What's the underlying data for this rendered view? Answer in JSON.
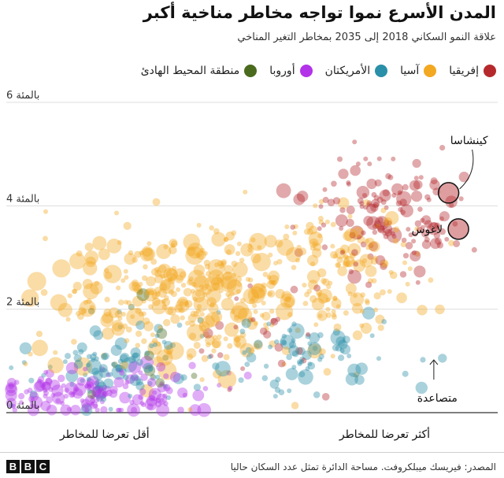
{
  "header": {
    "title": "المدن الأسرع نموا تواجه مخاطر مناخية أكبر",
    "subtitle": "علاقة النمو السكاني 2018 إلى 2035 بمخاطر التغير المناخي"
  },
  "legend": [
    {
      "label": "إفريقيا",
      "color": "#b5292c"
    },
    {
      "label": "آسيا",
      "color": "#f2a820"
    },
    {
      "label": "الأمريكتان",
      "color": "#2a8fa8"
    },
    {
      "label": "أوروبا",
      "color": "#b233e8"
    },
    {
      "label": "منطقة المحيط الهادئ",
      "color": "#4a6b1d"
    }
  ],
  "footer": {
    "source": "المصدر: فيريسك ميبلكروفت. مساحة الدائرة تمثل عدد السكان حاليا",
    "logo": [
      "B",
      "B",
      "C"
    ]
  },
  "chart_data": {
    "type": "scatter",
    "title": "المدن الأسرع نموا تواجه مخاطر مناخية أكبر",
    "subtitle": "علاقة النمو السكاني 2018 إلى 2035 بمخاطر التغير المناخي",
    "ylim": [
      0,
      6
    ],
    "yticks": [
      {
        "value": 0,
        "label": "0 بالمئة"
      },
      {
        "value": 2,
        "label": "2 بالمئة"
      },
      {
        "value": 4,
        "label": "4 بالمئة"
      },
      {
        "value": 6,
        "label": "6 بالمئة"
      }
    ],
    "xlim": [
      0,
      100
    ],
    "x_labels": {
      "low": "أقل تعرضا للمخاطر",
      "high": "أكثر تعرضا للمخاطر"
    },
    "grid": true,
    "legend_position": "top",
    "arrow_label": "متصاعدة",
    "series": [
      {
        "name": "إفريقيا",
        "color": "#b5292c",
        "clusters": [
          {
            "xc": 78,
            "yc": 3.9,
            "sx": 8,
            "sy": 0.55,
            "n": 150,
            "rmin": 3,
            "rmax": 10
          },
          {
            "xc": 55,
            "yc": 1.6,
            "sx": 10,
            "sy": 0.6,
            "n": 25,
            "rmin": 3,
            "rmax": 7
          }
        ]
      },
      {
        "name": "آسيا",
        "color": "#f2a820",
        "clusters": [
          {
            "xc": 38,
            "yc": 2.2,
            "sx": 15,
            "sy": 0.7,
            "n": 360,
            "rmin": 3,
            "rmax": 12
          },
          {
            "xc": 68,
            "yc": 2.8,
            "sx": 10,
            "sy": 0.7,
            "n": 140,
            "rmin": 3,
            "rmax": 10
          }
        ]
      },
      {
        "name": "الأمريكتان",
        "color": "#2a8fa8",
        "clusters": [
          {
            "xc": 20,
            "yc": 0.9,
            "sx": 9,
            "sy": 0.4,
            "n": 90,
            "rmin": 3,
            "rmax": 10
          },
          {
            "xc": 62,
            "yc": 1.1,
            "sx": 10,
            "sy": 0.4,
            "n": 80,
            "rmin": 3,
            "rmax": 10
          }
        ]
      },
      {
        "name": "أوروبا",
        "color": "#b233e8",
        "clusters": [
          {
            "xc": 20,
            "yc": 0.4,
            "sx": 12,
            "sy": 0.25,
            "n": 150,
            "rmin": 3,
            "rmax": 9
          }
        ]
      },
      {
        "name": "منطقة المحيط الهادئ",
        "color": "#4a6b1d",
        "clusters": [
          {
            "xc": 28,
            "yc": 1.3,
            "sx": 6,
            "sy": 0.4,
            "n": 12,
            "rmin": 4,
            "rmax": 9
          }
        ]
      }
    ],
    "annotations": [
      {
        "label": "كينشاسا",
        "x": 90,
        "y": 4.25,
        "r": 13,
        "color": "#b5292c"
      },
      {
        "label": "لاغوس",
        "x": 92,
        "y": 3.55,
        "r": 13,
        "color": "#b5292c"
      }
    ]
  }
}
